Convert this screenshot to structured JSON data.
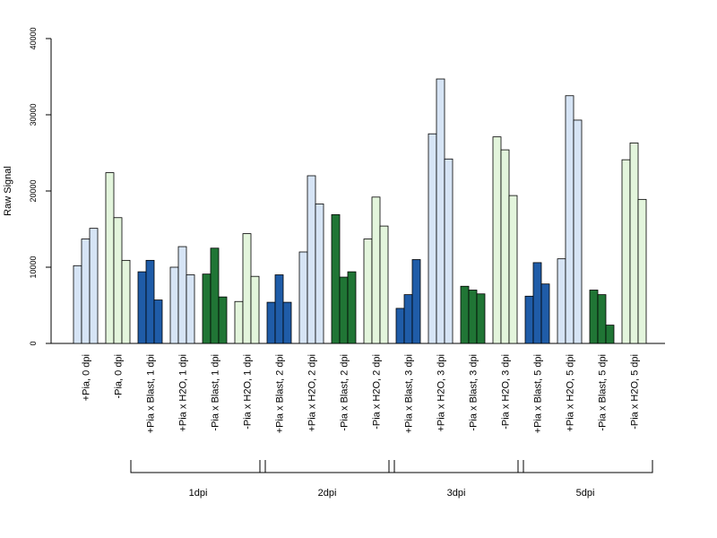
{
  "chart_data": {
    "type": "bar",
    "title": "",
    "xlabel": "",
    "ylabel": "Raw Signal",
    "ylim": [
      0,
      40000
    ],
    "yticks": [
      0,
      10000,
      20000,
      30000,
      40000
    ],
    "grid": false,
    "legend": "none",
    "bars_per_category": 3,
    "colors": {
      "light_blue": "#d6e4f5",
      "light_green": "#e3f5dc",
      "dark_blue": "#1f5ca8",
      "dark_green": "#207535"
    },
    "categories": [
      {
        "label": "+Pia, 0 dpi",
        "color": "light_blue",
        "values": [
          10200,
          13700,
          15100
        ]
      },
      {
        "label": "-Pia, 0 dpi",
        "color": "light_green",
        "values": [
          22400,
          16500,
          10900
        ]
      },
      {
        "label": "+Pia x Blast, 1 dpi",
        "color": "dark_blue",
        "values": [
          9400,
          10900,
          5700
        ]
      },
      {
        "label": "+Pia x H2O, 1 dpi",
        "color": "light_blue",
        "values": [
          10000,
          12700,
          9000
        ]
      },
      {
        "label": "-Pia x Blast, 1 dpi",
        "color": "dark_green",
        "values": [
          9100,
          12500,
          6100
        ]
      },
      {
        "label": "-Pia x H2O, 1 dpi",
        "color": "light_green",
        "values": [
          5500,
          14400,
          8800
        ]
      },
      {
        "label": "+Pia x Blast, 2 dpi",
        "color": "dark_blue",
        "values": [
          5400,
          9000,
          5400
        ]
      },
      {
        "label": "+Pia x H2O, 2 dpi",
        "color": "light_blue",
        "values": [
          12000,
          22000,
          18300
        ]
      },
      {
        "label": "-Pia x Blast, 2 dpi",
        "color": "dark_green",
        "values": [
          16900,
          8700,
          9400
        ]
      },
      {
        "label": "-Pia x H2O, 2 dpi",
        "color": "light_green",
        "values": [
          13700,
          19200,
          15400
        ]
      },
      {
        "label": "+Pia x Blast, 3 dpi",
        "color": "dark_blue",
        "values": [
          4600,
          6400,
          11000
        ]
      },
      {
        "label": "+Pia x H2O, 3 dpi",
        "color": "light_blue",
        "values": [
          27500,
          34700,
          24200
        ]
      },
      {
        "label": "-Pia x Blast, 3 dpi",
        "color": "dark_green",
        "values": [
          7500,
          7000,
          6500
        ]
      },
      {
        "label": "-Pia x H2O, 3 dpi",
        "color": "light_green",
        "values": [
          27100,
          25400,
          19400
        ]
      },
      {
        "label": "+Pia x Blast, 5 dpi",
        "color": "dark_blue",
        "values": [
          6200,
          10600,
          7800
        ]
      },
      {
        "label": "+Pia x H2O, 5 dpi",
        "color": "light_blue",
        "values": [
          11100,
          32500,
          29300
        ]
      },
      {
        "label": "-Pia x Blast, 5 dpi",
        "color": "dark_green",
        "values": [
          7000,
          6400,
          2400
        ]
      },
      {
        "label": "-Pia x H2O, 5 dpi",
        "color": "light_green",
        "values": [
          24100,
          26300,
          18900
        ]
      }
    ],
    "groups": [
      {
        "label": "1dpi",
        "from": 2,
        "to": 5
      },
      {
        "label": "2dpi",
        "from": 6,
        "to": 9
      },
      {
        "label": "3dpi",
        "from": 10,
        "to": 13
      },
      {
        "label": "5dpi",
        "from": 14,
        "to": 17
      }
    ]
  }
}
